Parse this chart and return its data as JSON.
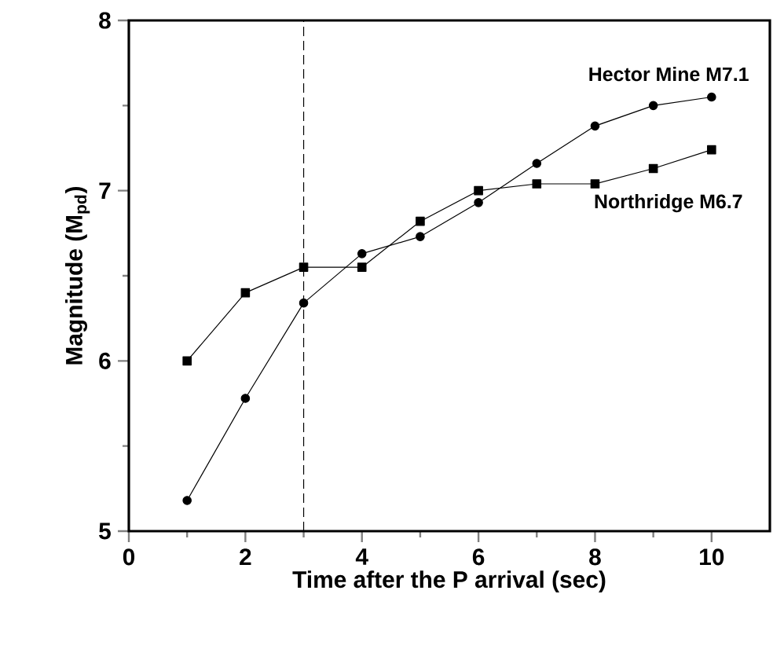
{
  "chart_data": {
    "type": "line",
    "xlabel": "Time after the P arrival (sec)",
    "ylabel": "Magnitude (M$_{pd}$)",
    "xlim": [
      0,
      11
    ],
    "xticks": [
      0,
      2,
      4,
      6,
      8,
      10
    ],
    "ylim": [
      5,
      8
    ],
    "yticks": [
      5,
      6,
      7,
      8
    ],
    "grid": false,
    "line_style": "solid",
    "x": [
      1,
      2,
      3,
      4,
      5,
      6,
      7,
      8,
      9,
      10
    ],
    "series": [
      {
        "name": "Hector Mine M7.1",
        "color": "#000000",
        "marker": "circle",
        "values": [
          5.18,
          5.78,
          6.34,
          6.63,
          6.73,
          6.93,
          7.16,
          7.38,
          7.5,
          7.55
        ]
      },
      {
        "name": "Northridge M6.7",
        "color": "#000000",
        "marker": "square",
        "values": [
          6.0,
          6.4,
          6.55,
          6.55,
          6.82,
          7.0,
          7.04,
          7.04,
          7.13,
          7.24
        ]
      }
    ],
    "ref_lines": [
      {
        "axis": "x",
        "value": 3,
        "line_style": "dashed",
        "color": "#000000"
      }
    ]
  }
}
